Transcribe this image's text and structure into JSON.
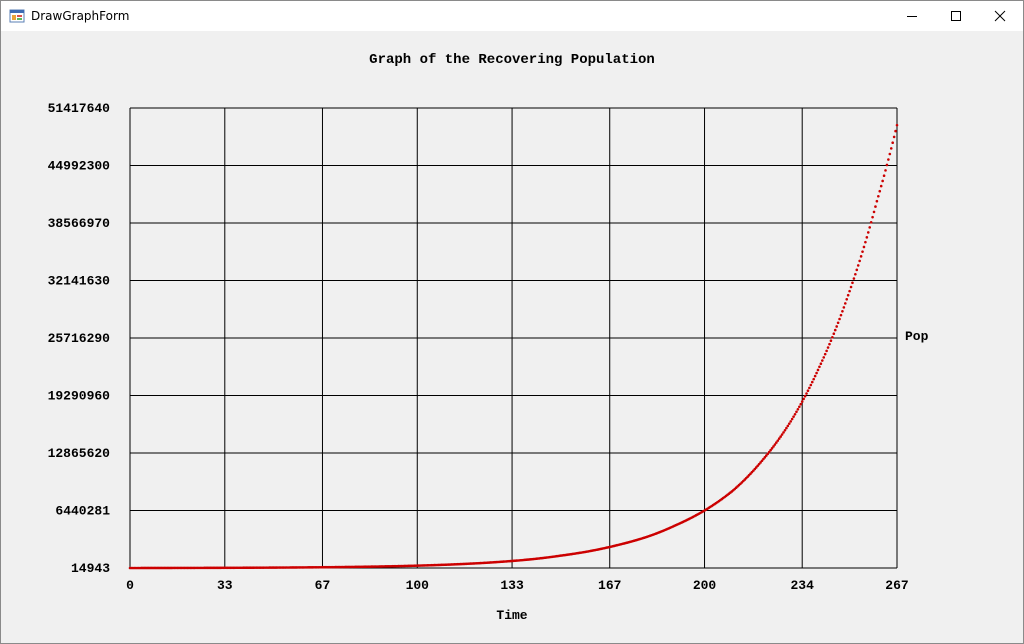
{
  "window": {
    "title": "DrawGraphForm",
    "icons": {
      "app": "app-icon",
      "minimize": "minimize-icon",
      "maximize": "maximize-icon",
      "close": "close-icon"
    }
  },
  "colors": {
    "series": "#cc0000",
    "grid": "#000000",
    "background": "#f0f0f0"
  },
  "chart_data": {
    "type": "scatter",
    "title": "Graph of the Recovering Population",
    "xlabel": "Time",
    "ylabel": "Pop",
    "xlim": [
      0,
      267
    ],
    "ylim": [
      14943,
      51417640
    ],
    "grid": true,
    "x_ticks": [
      0,
      33,
      67,
      100,
      133,
      167,
      200,
      234,
      267
    ],
    "x_tick_labels": [
      "0",
      "33",
      "67",
      "100",
      "133",
      "167",
      "200",
      "234",
      "267"
    ],
    "y_ticks": [
      14943,
      6440281,
      12865620,
      19290960,
      25716290,
      32141630,
      38566970,
      44992300,
      51417640
    ],
    "y_tick_labels": [
      "14943",
      "6440281",
      "12865620",
      "19290960",
      "25716290",
      "32141630",
      "38566970",
      "44992300",
      "51417640"
    ],
    "series": [
      {
        "color": "#cc0000",
        "x": [
          0,
          10,
          20,
          30,
          40,
          50,
          60,
          70,
          80,
          90,
          100,
          110,
          120,
          130,
          140,
          150,
          160,
          170,
          180,
          190,
          200,
          210,
          220,
          230,
          240,
          250,
          260,
          267
        ],
        "y": [
          14943,
          19500,
          25500,
          34000,
          45500,
          61000,
          82000,
          110000,
          150000,
          205000,
          280000,
          385000,
          530000,
          730000,
          1000000,
          1400000,
          1900000,
          2600000,
          3500000,
          4800000,
          6440281,
          8700000,
          12000000,
          16400000,
          22500000,
          30500000,
          41000000,
          49500000
        ]
      }
    ]
  }
}
